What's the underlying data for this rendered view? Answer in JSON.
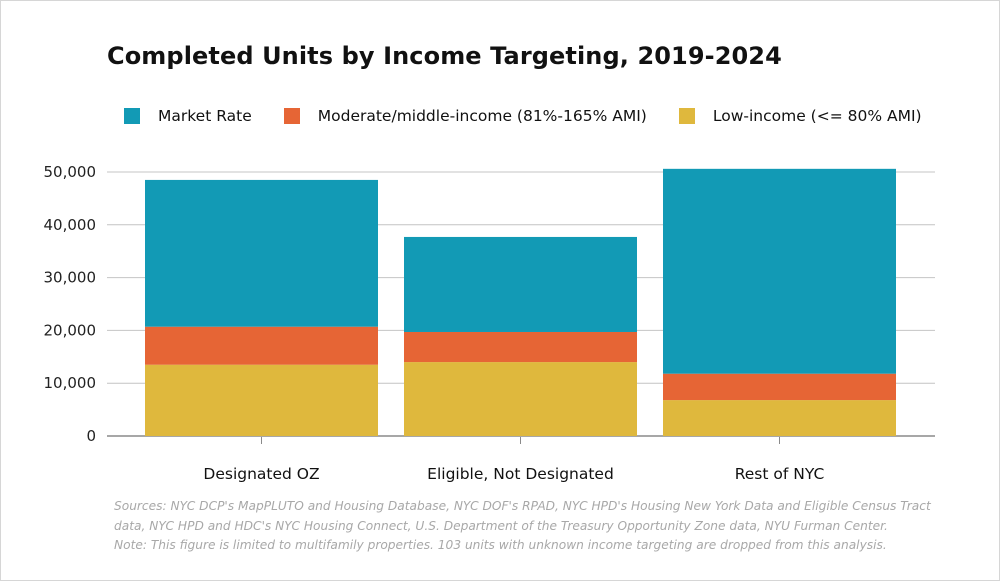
{
  "chart_data": {
    "type": "bar",
    "stacked": true,
    "title": "Completed Units by Income Targeting, 2019-2024",
    "xlabel": "",
    "ylabel": "",
    "categories": [
      "Designated OZ",
      "Eligible, Not Designated",
      "Rest of NYC"
    ],
    "series": [
      {
        "name": "Low-income (<= 80% AMI)",
        "color": "#dfb83d",
        "values": [
          13500,
          14000,
          6800
        ]
      },
      {
        "name": "Moderate/middle-income (81%-165% AMI)",
        "color": "#e66535",
        "values": [
          7200,
          5700,
          5000
        ]
      },
      {
        "name": "Market Rate",
        "color": "#129ab5",
        "values": [
          27800,
          18000,
          38800
        ]
      }
    ],
    "legend_order": [
      "Market Rate",
      "Moderate/middle-income (81%-165% AMI)",
      "Low-income (<= 80% AMI)"
    ],
    "ylim": [
      0,
      50000
    ],
    "yticks": [
      0,
      10000,
      20000,
      30000,
      40000,
      50000
    ],
    "ytick_labels": [
      "0",
      "10,000",
      "20,000",
      "30,000",
      "40,000",
      "50,000"
    ],
    "grid": true,
    "legend_position": "top-left",
    "source_lines": [
      "Sources: NYC DCP's MapPLUTO and Housing Database, NYC DOF's RPAD, NYC HPD's Housing New York Data and Eligible Census Tract",
      "data, NYC HPD and HDC's NYC Housing Connect, U.S. Department of the Treasury Opportunity Zone data, NYU Furman Center.",
      "Note: This figure is limited to multifamily properties. 103 units with unknown income targeting are dropped from this analysis."
    ]
  }
}
